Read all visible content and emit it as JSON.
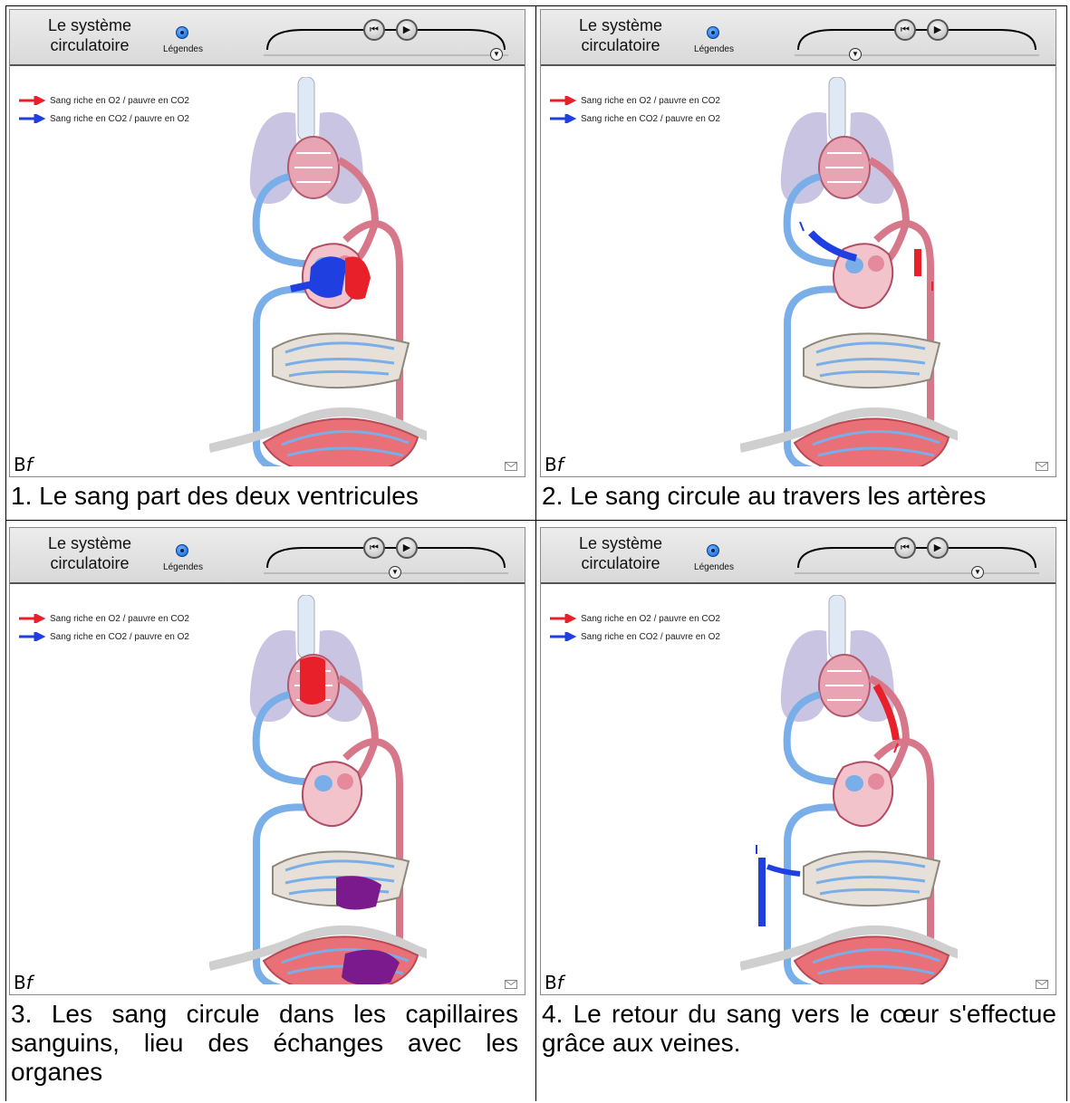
{
  "panels": [
    {
      "app_title": "Le système circulatoire",
      "legend_label": "Légendes",
      "legend": [
        "Sang riche en O2 / pauvre en CO2",
        "Sang riche en CO2 / pauvre en O2"
      ],
      "timeline_progress": 1.0,
      "bf_b": "B",
      "bf_f": "f",
      "caption": "1. Le sang part des deux ventricules"
    },
    {
      "app_title": "Le système circulatoire",
      "legend_label": "Légendes",
      "legend": [
        "Sang riche en O2 / pauvre en CO2",
        "Sang riche en CO2 / pauvre en O2"
      ],
      "timeline_progress": 0.24,
      "bf_b": "B",
      "bf_f": "f",
      "caption": "2. Le sang circule au travers les artères"
    },
    {
      "app_title": "Le système circulatoire",
      "legend_label": "Légendes",
      "legend": [
        "Sang riche en O2 / pauvre en CO2",
        "Sang riche en CO2 / pauvre en O2"
      ],
      "timeline_progress": 0.55,
      "bf_b": "B",
      "bf_f": "f",
      "caption": "3. Les sang circule dans les capillaires sanguins, lieu des échanges avec les organes"
    },
    {
      "app_title": "Le système circulatoire",
      "legend_label": "Légendes",
      "legend": [
        "Sang riche en O2 / pauvre en CO2",
        "Sang riche en CO2 / pauvre en O2"
      ],
      "timeline_progress": 0.78,
      "bf_b": "B",
      "bf_f": "f",
      "caption": "4. Le retour du sang vers le cœur s'effectue  grâce aux veines."
    }
  ],
  "icons": {
    "rewind": "rewind-icon",
    "play": "play-icon",
    "scrubber": "chevron-down-icon",
    "mail": "mail-icon"
  },
  "colors": {
    "oxygenated": "#e8202a",
    "deoxygenated": "#1f3fe0",
    "artery": "#d6788a",
    "vein": "#7aaee8",
    "lung": "#c8c4e2"
  }
}
